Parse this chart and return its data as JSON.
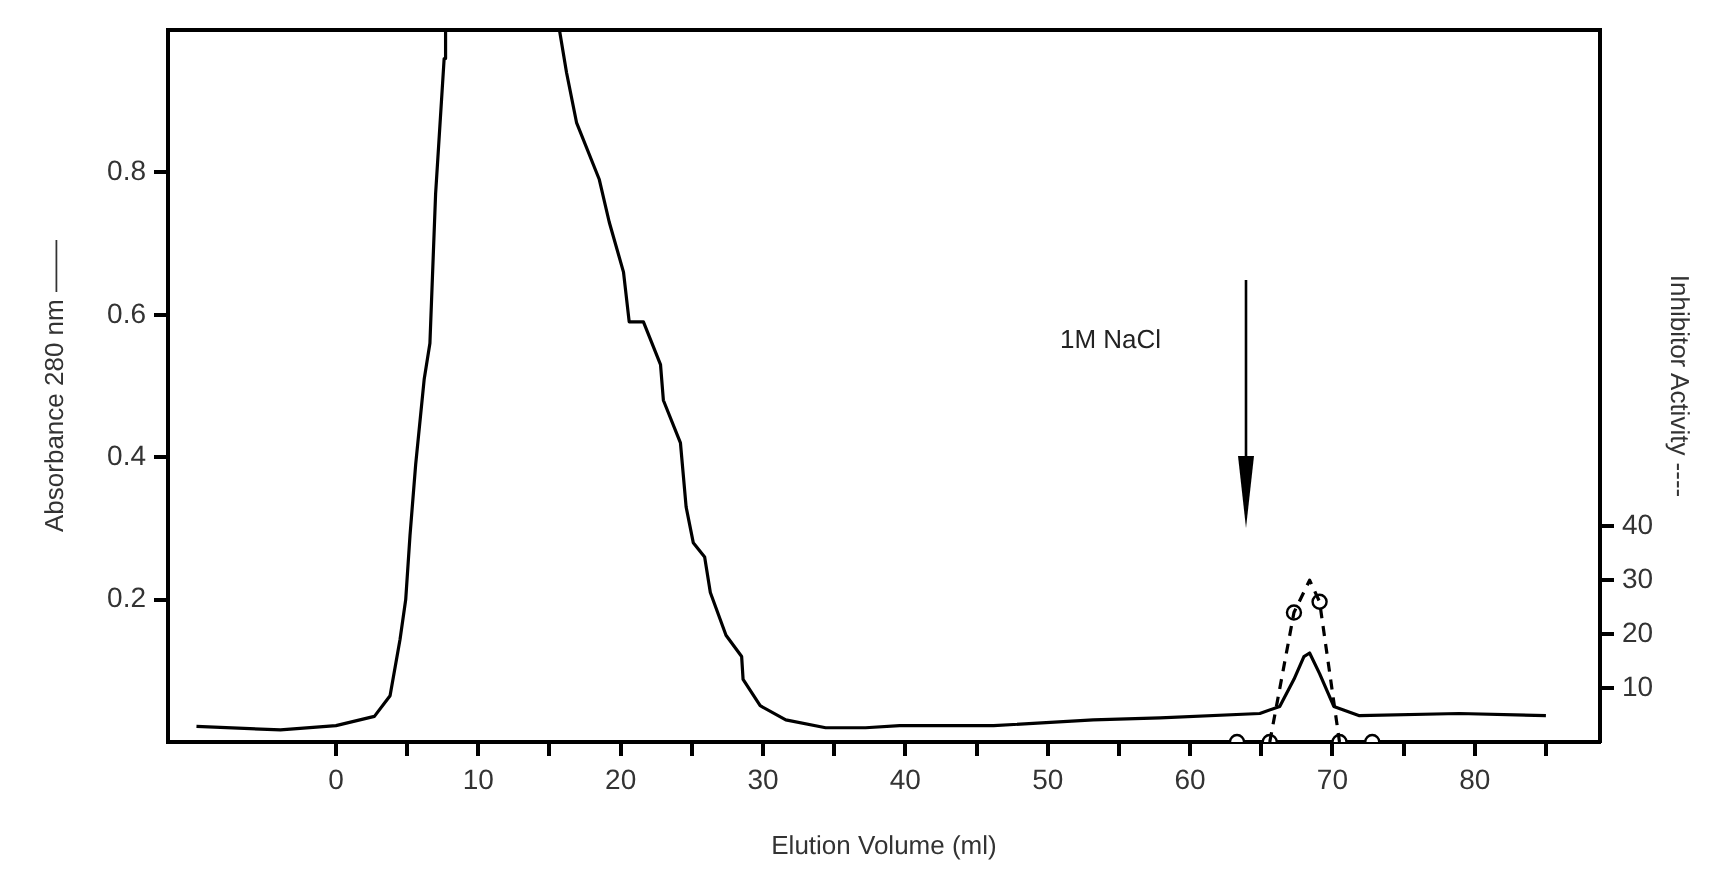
{
  "chart_data": {
    "type": "line",
    "xlabel": "Elution Volume (ml)",
    "ylabel": "Absorbance 280 nm ——",
    "y2label": "Inhibitor Activity ----",
    "xlim": [
      -11.8,
      88.8
    ],
    "xticks": [
      0,
      {
        "value": 5,
        "label": null
      },
      10,
      {
        "value": 15,
        "label": null
      },
      20,
      {
        "value": 25,
        "label": null
      },
      30,
      {
        "value": 35,
        "label": null
      },
      40,
      {
        "value": 45,
        "label": null
      },
      50,
      {
        "value": 55,
        "label": null
      },
      60,
      {
        "value": 65,
        "label": null
      },
      70,
      {
        "value": 75,
        "label": null
      },
      80,
      {
        "value": 85,
        "label": null
      }
    ],
    "ylim": [
      0,
      1.0
    ],
    "yticks": [
      0.2,
      0.4,
      0.6,
      0.8
    ],
    "y2lim": [
      0,
      132
    ],
    "y2ticks": [
      10,
      20,
      30,
      40
    ],
    "grid": false,
    "legend": false,
    "annotations": [
      "1M NaCl"
    ],
    "series": [
      {
        "type": "line",
        "color": "#000000",
        "line_style": "solid",
        "marker": "none",
        "x": [
          -9.8,
          -3.9,
          0,
          2.7,
          3.8,
          4.5,
          4.9,
          5.2,
          5.6,
          6.2,
          6.6,
          7.0,
          7.6,
          7.7,
          15.7,
          16.2,
          16.9,
          18.5,
          19.2,
          20.2,
          20.6,
          21.6,
          22.8,
          23.0,
          24.2,
          24.6,
          25.1,
          25.9,
          26.3,
          27.4,
          28.5,
          28.6,
          29.8,
          31.6,
          34.4,
          37.2,
          39.6,
          46.2,
          53.2,
          57.9,
          64.9,
          66.3,
          67.3,
          68.0,
          68.4,
          69.1,
          70.1,
          71.9,
          78.9,
          85
        ],
        "values": [
          0.022,
          0.017,
          0.023,
          0.036,
          0.065,
          0.144,
          0.2,
          0.29,
          0.39,
          0.51,
          0.56,
          0.77,
          0.96,
          1.0,
          1.0,
          0.94,
          0.87,
          0.79,
          0.73,
          0.66,
          0.59,
          0.59,
          0.53,
          0.48,
          0.42,
          0.33,
          0.28,
          0.26,
          0.21,
          0.15,
          0.12,
          0.088,
          0.051,
          0.031,
          0.02,
          0.02,
          0.023,
          0.023,
          0.031,
          0.034,
          0.04,
          0.05,
          0.088,
          0.12,
          0.125,
          0.096,
          0.05,
          0.037,
          0.04,
          0.037
        ]
      },
      {
        "type": "line",
        "axis": "y2",
        "color": "#000000",
        "line_style": "dashed",
        "marker": "none",
        "x": [
          65.6,
          67.3,
          68.4,
          69.1,
          70.5
        ],
        "values": [
          0,
          24,
          30,
          26,
          0
        ]
      },
      {
        "type": "scatter",
        "axis": "y2",
        "color": "#000000",
        "marker": "circle",
        "x": [
          63.3,
          65.6,
          67.3,
          69.1,
          70.5,
          72.8
        ],
        "values": [
          0,
          0,
          24,
          26,
          0,
          0
        ]
      }
    ]
  }
}
